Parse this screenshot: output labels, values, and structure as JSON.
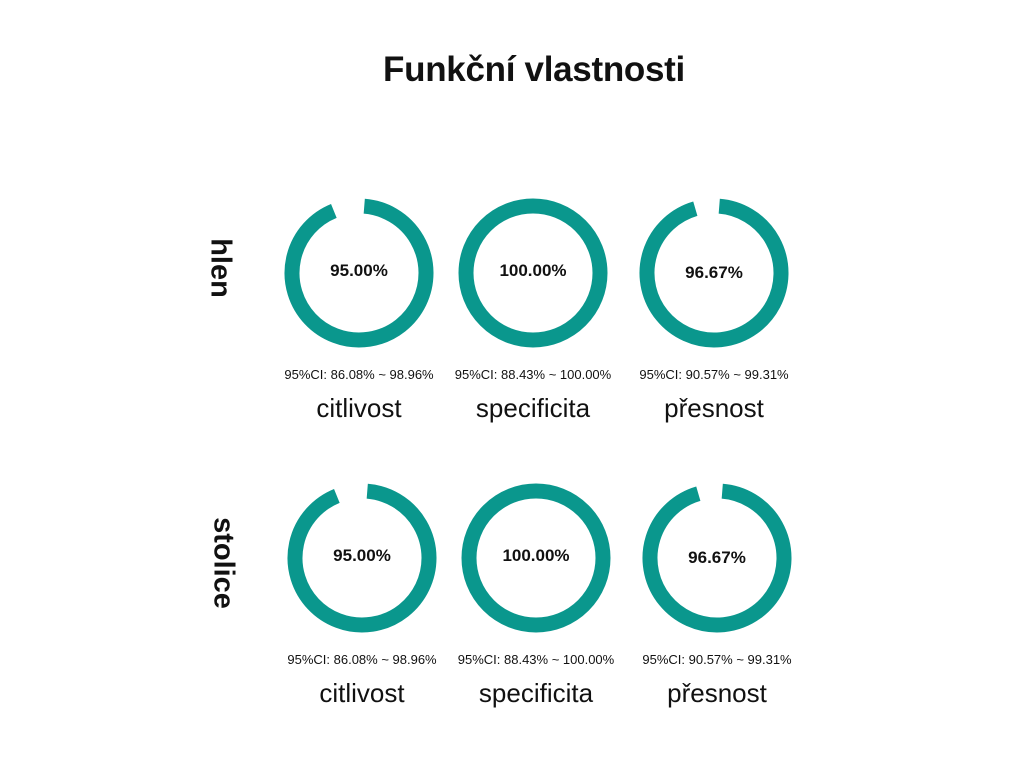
{
  "title": "Funkční vlastnosti",
  "ring_color": "#0a978d",
  "chart_data": [
    {
      "type": "donut",
      "row_label": "hlen",
      "metrics": [
        {
          "name": "citlivost",
          "value": 95.0,
          "value_label": "95.00%",
          "ci_label": "95%CI:  86.08% ~ 98.96%"
        },
        {
          "name": "specificita",
          "value": 100.0,
          "value_label": "100.00%",
          "ci_label": "95%CI:  88.43% ~ 100.00%"
        },
        {
          "name": "přesnost",
          "value": 96.67,
          "value_label": "96.67%",
          "ci_label": "95%CI:  90.57% ~ 99.31%"
        }
      ]
    },
    {
      "type": "donut",
      "row_label": "stolice",
      "metrics": [
        {
          "name": "citlivost",
          "value": 95.0,
          "value_label": "95.00%",
          "ci_label": "95%CI:  86.08% ~ 98.96%"
        },
        {
          "name": "specificita",
          "value": 100.0,
          "value_label": "100.00%",
          "ci_label": "95%CI:  88.43% ~ 100.00%"
        },
        {
          "name": "přesnost",
          "value": 96.67,
          "value_label": "96.67%",
          "ci_label": "95%CI:  90.57% ~ 99.31%"
        }
      ]
    }
  ]
}
